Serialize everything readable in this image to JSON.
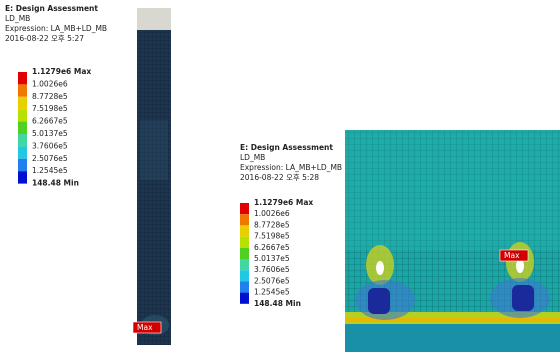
{
  "panels": [
    {
      "title": "E: Design Assessment",
      "subtitle": "LD_MB",
      "expression": "Expression: LA_MB+LD_MB",
      "date": "2016-08-22 오후 5:27",
      "legend": [
        "1.1279e6 Max",
        "1.0026e6",
        "8.7728e5",
        "7.5198e5",
        "6.2667e5",
        "5.0137e5",
        "3.7606e5",
        "2.5076e5",
        "1.2545e5",
        "148.48 Min"
      ],
      "probe": "Max"
    },
    {
      "title": "E: Design Assessment",
      "subtitle": "LD_MB",
      "expression": "Expression: LA_MB+LD_MB",
      "date": "2016-08-22 오후 5:28",
      "legend": [
        "1.1279e6 Max",
        "1.0026e6",
        "8.7728e5",
        "7.5198e5",
        "6.2667e5",
        "5.0137e5",
        "3.7606e5",
        "2.5076e5",
        "1.2545e5",
        "148.48 Min"
      ],
      "probe": "Max"
    }
  ]
}
